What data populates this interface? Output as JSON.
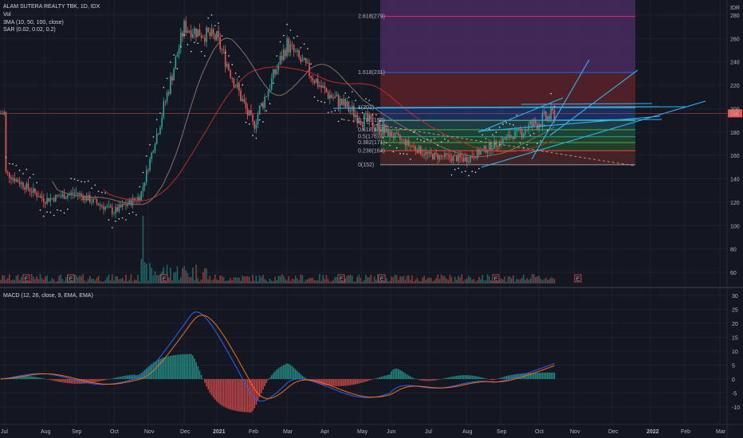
{
  "header": {
    "title": "ALAM SUTERA REALTY TBK, 1D, IDX",
    "vol": "Vol",
    "ma": "3MA (10, 50, 100, close)",
    "sar": "SAR (0.02, 0.02, 0.2)",
    "macd": "MACD (12, 26, close, 9, EMA, EMA)"
  },
  "colors": {
    "background": "#131722",
    "grid": "#1e222d",
    "up": "#26a69a",
    "down": "#ef5350",
    "ma10": "#b71c1c",
    "ma50": "#8d6e63",
    "ma100": "#c62828",
    "macd_line": "#2962ff",
    "signal_line": "#ff6d00",
    "trendline": "#29b6f6"
  },
  "chart_data": [
    {
      "type": "candlestick",
      "title": "ALAM SUTERA REALTY TBK, 1D, IDX",
      "currency": "IDR",
      "ylim": [
        50,
        295
      ],
      "y_ticks": [
        60,
        80,
        100,
        120,
        140,
        160,
        180,
        200,
        220,
        240,
        260,
        280
      ],
      "x_ticks": [
        "Jul",
        "Aug",
        "Sep",
        "Oct",
        "Nov",
        "Dec",
        "2021",
        "Feb",
        "Mar",
        "Apr",
        "May",
        "Jun",
        "Jul",
        "Aug",
        "Sep",
        "Oct",
        "Nov",
        "Dec",
        "2022",
        "Feb",
        "Mar"
      ],
      "last_price": "196",
      "earnings_marks": [
        "E",
        "E",
        "E",
        "E",
        "E",
        "E",
        "E"
      ],
      "fibonacci": [
        {
          "label": "2.618(279)",
          "value": 279
        },
        {
          "label": "1.618(231)",
          "value": 231
        },
        {
          "label": "1(201)",
          "value": 201
        },
        {
          "label": "0.786(190)",
          "value": 190
        },
        {
          "label": "0.618(182)",
          "value": 182
        },
        {
          "label": "0.5(176)",
          "value": 176
        },
        {
          "label": "0.382(171)",
          "value": 171
        },
        {
          "label": "0.236(164)",
          "value": 164
        },
        {
          "label": "0(152)",
          "value": 152
        }
      ],
      "price_path": [
        {
          "x": "Jul 2020",
          "y": 146
        },
        {
          "x": "Aug 2020",
          "y": 122
        },
        {
          "x": "Sep 2020",
          "y": 128
        },
        {
          "x": "Oct 2020",
          "y": 112
        },
        {
          "x": "Nov 2020",
          "y": 125
        },
        {
          "x": "Nov 2020 mid",
          "y": 200
        },
        {
          "x": "Dec 2020",
          "y": 270
        },
        {
          "x": "2021",
          "y": 260
        },
        {
          "x": "Feb 2021",
          "y": 185
        },
        {
          "x": "Mar 2021",
          "y": 255
        },
        {
          "x": "Apr 2021",
          "y": 215
        },
        {
          "x": "May 2021",
          "y": 192
        },
        {
          "x": "Jun 2021",
          "y": 178
        },
        {
          "x": "Jul 2021",
          "y": 160
        },
        {
          "x": "Aug 2021",
          "y": 157
        },
        {
          "x": "Sep 2021",
          "y": 172
        },
        {
          "x": "Oct 2021",
          "y": 196
        }
      ]
    },
    {
      "type": "line",
      "title": "MACD (12, 26, close, 9, EMA, EMA)",
      "ylim": [
        -13,
        32
      ],
      "y_ticks": [
        -10,
        -5,
        0,
        5,
        10,
        15,
        20,
        25,
        30
      ]
    }
  ]
}
